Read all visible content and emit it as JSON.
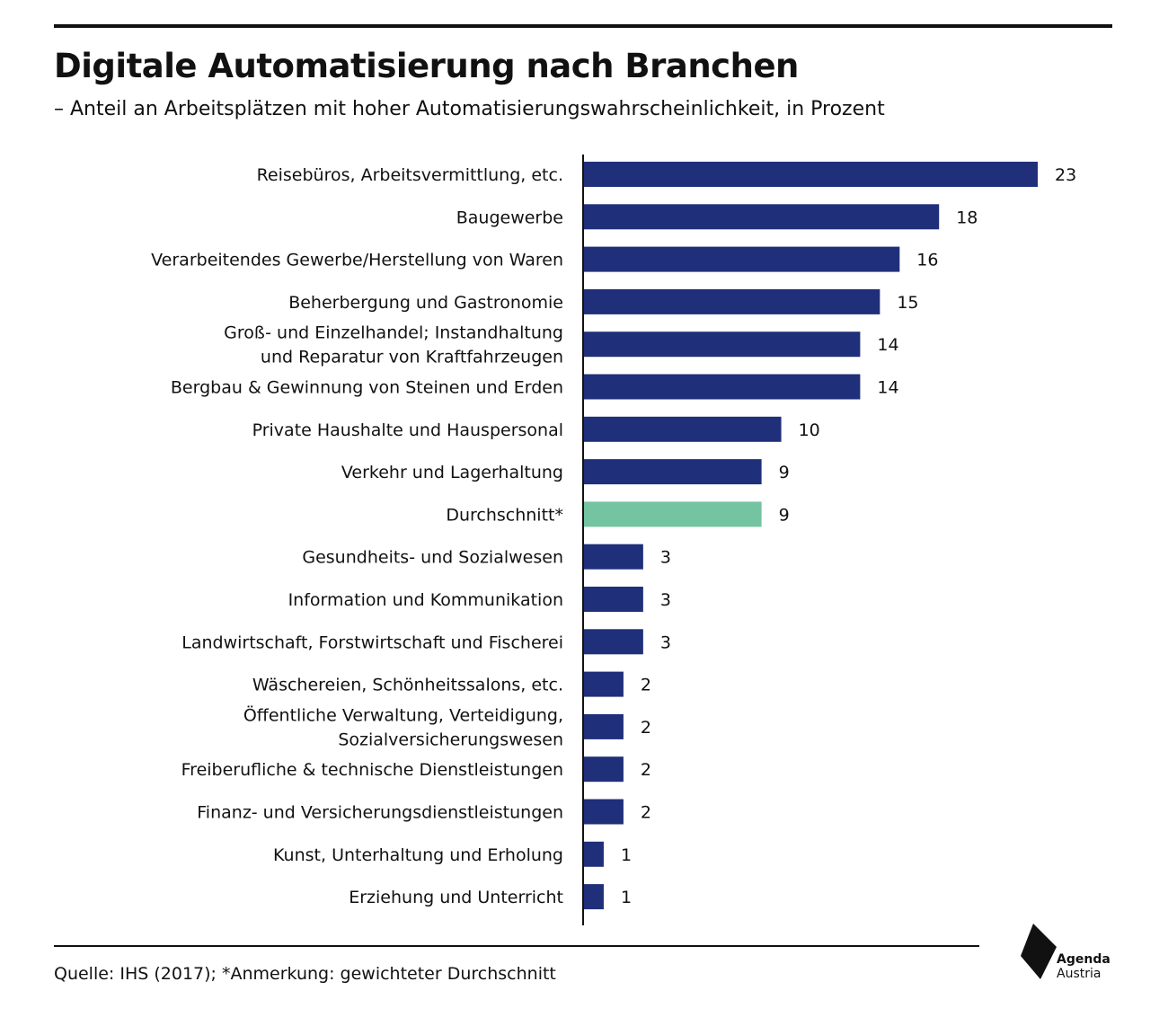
{
  "title": "Digitale Automatisierung nach Branchen",
  "subtitle": "– Anteil an Arbeitsplätzen mit hoher Automatisierungswahrscheinlichkeit, in Prozent",
  "source": "Quelle:  IHS (2017); *Anmerkung: gewichteter Durchschnitt",
  "logo": {
    "line1": "Agenda",
    "line2": "Austria"
  },
  "colors": {
    "bar": "#1f2f7a",
    "highlight": "#74c3a1",
    "text": "#111111"
  },
  "chart_data": {
    "type": "bar",
    "orientation": "horizontal",
    "categories": [
      "Reisebüros, Arbeitsvermittlung, etc.",
      "Baugewerbe",
      "Verarbeitendes Gewerbe/Herstellung von Waren",
      "Beherbergung und Gastronomie",
      "Groß- und Einzelhandel; Instandhaltung und Reparatur von Kraftfahrzeugen",
      "Bergbau & Gewinnung von Steinen und Erden",
      "Private Haushalte und Hauspersonal",
      "Verkehr und Lagerhaltung",
      "Durchschnitt*",
      "Gesundheits- und Sozialwesen",
      "Information und Kommunikation",
      "Landwirtschaft, Forstwirtschaft und Fischerei",
      "Wäschereien, Schönheitssalons, etc.",
      "Öffentliche Verwaltung, Verteidigung, Sozialversicherungswesen",
      "Freiberufliche & technische Dienstleistungen",
      "Finanz- und Versicherungsdienstleistungen",
      "Kunst, Unterhaltung und Erholung",
      "Erziehung und Unterricht"
    ],
    "label_lines": [
      [
        "Reisebüros, Arbeitsvermittlung, etc."
      ],
      [
        "Baugewerbe"
      ],
      [
        "Verarbeitendes Gewerbe/Herstellung von Waren"
      ],
      [
        "Beherbergung und Gastronomie"
      ],
      [
        "Groß- und Einzelhandel; Instandhaltung",
        "und Reparatur von Kraftfahrzeugen"
      ],
      [
        "Bergbau & Gewinnung von Steinen und Erden"
      ],
      [
        "Private Haushalte und Hauspersonal"
      ],
      [
        "Verkehr und Lagerhaltung"
      ],
      [
        "Durchschnitt*"
      ],
      [
        "Gesundheits- und Sozialwesen"
      ],
      [
        "Information und Kommunikation"
      ],
      [
        "Landwirtschaft, Forstwirtschaft und Fischerei"
      ],
      [
        "Wäschereien, Schönheitssalons, etc."
      ],
      [
        "Öffentliche Verwaltung, Verteidigung,",
        "Sozialversicherungswesen"
      ],
      [
        "Freiberufliche & technische Dienstleistungen"
      ],
      [
        "Finanz- und Versicherungsdienstleistungen"
      ],
      [
        "Kunst, Unterhaltung und Erholung"
      ],
      [
        "Erziehung und Unterricht"
      ]
    ],
    "values": [
      23,
      18,
      16,
      15,
      14,
      14,
      10,
      9,
      9,
      3,
      3,
      3,
      2,
      2,
      2,
      2,
      1,
      1
    ],
    "highlight_index": 8,
    "xlim": [
      0,
      23
    ],
    "xlabel": "",
    "ylabel": "",
    "grid": false,
    "legend": "none"
  }
}
